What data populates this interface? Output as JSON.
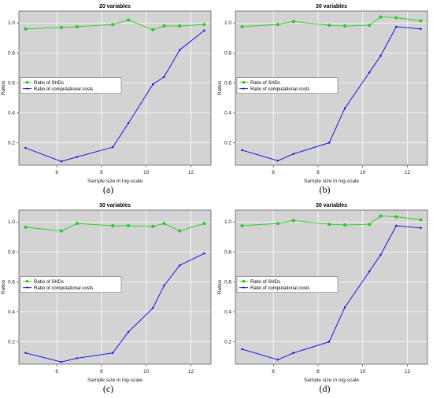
{
  "chart_data": [
    {
      "type": "line",
      "title": "20 variables",
      "xlabel": "Sample size in log-scale",
      "ylabel": "Ratios",
      "caption": "(a)",
      "xlim": [
        4.3,
        12.9
      ],
      "ylim": [
        0.05,
        1.08
      ],
      "xticks": [
        6,
        8,
        10,
        12
      ],
      "yticks": [
        0.2,
        0.4,
        0.6,
        0.8,
        1.0
      ],
      "ytick_labels": [
        "0.2",
        "0.4",
        "0.6",
        "0.8",
        "1.0"
      ],
      "grid": true,
      "legend_position": "middle-left",
      "series": [
        {
          "name": "Ratio of SHDs",
          "color": "#22cc22",
          "marker": "circle",
          "x": [
            4.6,
            6.2,
            6.9,
            8.5,
            9.2,
            10.3,
            10.8,
            11.5,
            12.6
          ],
          "y": [
            0.96,
            0.97,
            0.975,
            0.99,
            1.02,
            0.955,
            0.98,
            0.98,
            0.99
          ]
        },
        {
          "name": "Ratio of computational costs",
          "color": "#0000ee",
          "marker": "dot",
          "x": [
            4.6,
            6.2,
            6.9,
            8.5,
            9.2,
            10.3,
            10.8,
            11.5,
            12.6
          ],
          "y": [
            0.165,
            0.075,
            0.105,
            0.17,
            0.33,
            0.59,
            0.64,
            0.82,
            0.95
          ]
        }
      ]
    },
    {
      "type": "line",
      "title": "30 variables",
      "xlabel": "Sample size in log-scale",
      "ylabel": "Ratios",
      "caption": "(b)",
      "xlim": [
        4.3,
        12.9
      ],
      "ylim": [
        0.05,
        1.08
      ],
      "xticks": [
        6,
        8,
        10,
        12
      ],
      "yticks": [
        0.2,
        0.4,
        0.6,
        0.8,
        1.0
      ],
      "ytick_labels": [
        "0.2",
        "0.4",
        "0.6",
        "0.8",
        "1.0"
      ],
      "grid": true,
      "legend_position": "middle-left",
      "series": [
        {
          "name": "Ratio of SHDs",
          "color": "#22cc22",
          "marker": "circle",
          "x": [
            4.6,
            6.2,
            6.9,
            8.5,
            9.2,
            10.3,
            10.8,
            11.5,
            12.6
          ],
          "y": [
            0.975,
            0.99,
            1.01,
            0.985,
            0.98,
            0.985,
            1.04,
            1.035,
            1.015
          ]
        },
        {
          "name": "Ratio of computational costs",
          "color": "#0000ee",
          "marker": "dot",
          "x": [
            4.6,
            6.2,
            6.9,
            8.5,
            9.2,
            10.3,
            10.8,
            11.5,
            12.6
          ],
          "y": [
            0.15,
            0.08,
            0.125,
            0.2,
            0.43,
            0.67,
            0.78,
            0.975,
            0.96
          ]
        }
      ]
    },
    {
      "type": "line",
      "title": "30 variables",
      "xlabel": "Sample size in log-scale",
      "ylabel": "Ratios",
      "caption": "(c)",
      "xlim": [
        4.3,
        12.9
      ],
      "ylim": [
        0.05,
        1.08
      ],
      "xticks": [
        6,
        8,
        10,
        12
      ],
      "yticks": [
        0.2,
        0.4,
        0.6,
        0.8,
        1.0
      ],
      "ytick_labels": [
        "0.2",
        "0.4",
        "0.6",
        "0.8",
        "1.0"
      ],
      "grid": true,
      "legend_position": "middle-left",
      "series": [
        {
          "name": "Ratio of SHDs",
          "color": "#22cc22",
          "marker": "circle",
          "x": [
            4.6,
            6.2,
            6.9,
            8.5,
            9.2,
            10.3,
            10.8,
            11.5,
            12.6
          ],
          "y": [
            0.965,
            0.94,
            0.99,
            0.975,
            0.975,
            0.97,
            0.99,
            0.94,
            0.99
          ]
        },
        {
          "name": "Ratio of computational costs",
          "color": "#0000ee",
          "marker": "dot",
          "x": [
            4.6,
            6.2,
            6.9,
            8.5,
            9.2,
            10.3,
            10.8,
            11.5,
            12.6
          ],
          "y": [
            0.125,
            0.065,
            0.09,
            0.125,
            0.265,
            0.425,
            0.575,
            0.71,
            0.79
          ]
        }
      ]
    },
    {
      "type": "line",
      "title": "30 variables",
      "xlabel": "Sample size in log-scale",
      "ylabel": "Ratios",
      "caption": "(d)",
      "xlim": [
        4.3,
        12.9
      ],
      "ylim": [
        0.05,
        1.08
      ],
      "xticks": [
        6,
        8,
        10,
        12
      ],
      "yticks": [
        0.2,
        0.4,
        0.6,
        0.8,
        1.0
      ],
      "ytick_labels": [
        "0.2",
        "0.4",
        "0.6",
        "0.8",
        "1.0"
      ],
      "grid": true,
      "legend_position": "middle-left",
      "series": [
        {
          "name": "Ratio of SHDs",
          "color": "#22cc22",
          "marker": "circle",
          "x": [
            4.6,
            6.2,
            6.9,
            8.5,
            9.2,
            10.3,
            10.8,
            11.5,
            12.6
          ],
          "y": [
            0.975,
            0.99,
            1.01,
            0.985,
            0.98,
            0.985,
            1.04,
            1.035,
            1.015
          ]
        },
        {
          "name": "Ratio of computational costs",
          "color": "#0000ee",
          "marker": "dot",
          "x": [
            4.6,
            6.2,
            6.9,
            8.5,
            9.2,
            10.3,
            10.8,
            11.5,
            12.6
          ],
          "y": [
            0.15,
            0.08,
            0.125,
            0.2,
            0.43,
            0.67,
            0.78,
            0.975,
            0.96
          ]
        }
      ]
    }
  ]
}
